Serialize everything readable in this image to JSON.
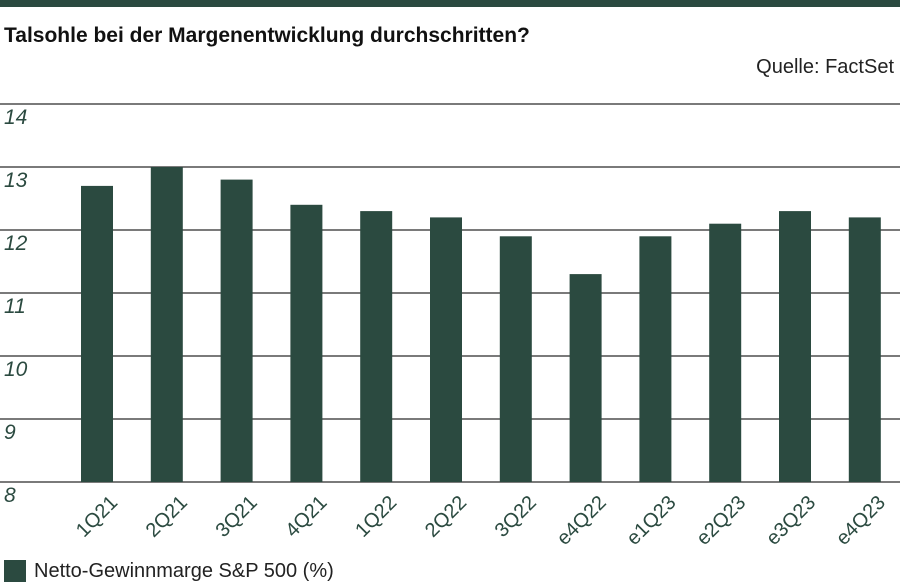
{
  "chart_data": {
    "type": "bar",
    "title": "Talsohle bei der Margenentwicklung durchschritten?",
    "source": "Quelle: FactSet",
    "categories": [
      "1Q21",
      "2Q21",
      "3Q21",
      "4Q21",
      "1Q22",
      "2Q22",
      "3Q22",
      "e4Q22",
      "e1Q23",
      "e2Q23",
      "e3Q23",
      "e4Q23"
    ],
    "series": [
      {
        "name": "Netto-Gewinnmarge S&P 500 (%)",
        "values": [
          12.7,
          13.0,
          12.8,
          12.4,
          12.3,
          12.2,
          11.9,
          11.3,
          11.9,
          12.1,
          12.3,
          12.2
        ]
      }
    ],
    "ylim": [
      8,
      14
    ],
    "yticks": [
      "14",
      "13",
      "12",
      "11",
      "10",
      "9",
      "8"
    ],
    "grid": true,
    "legend": "bottom-left",
    "colors": {
      "bar": "#2b4a40",
      "grid": "#2b2b2b",
      "tick": "#2b4a40",
      "rule": "#2b4a40"
    }
  }
}
